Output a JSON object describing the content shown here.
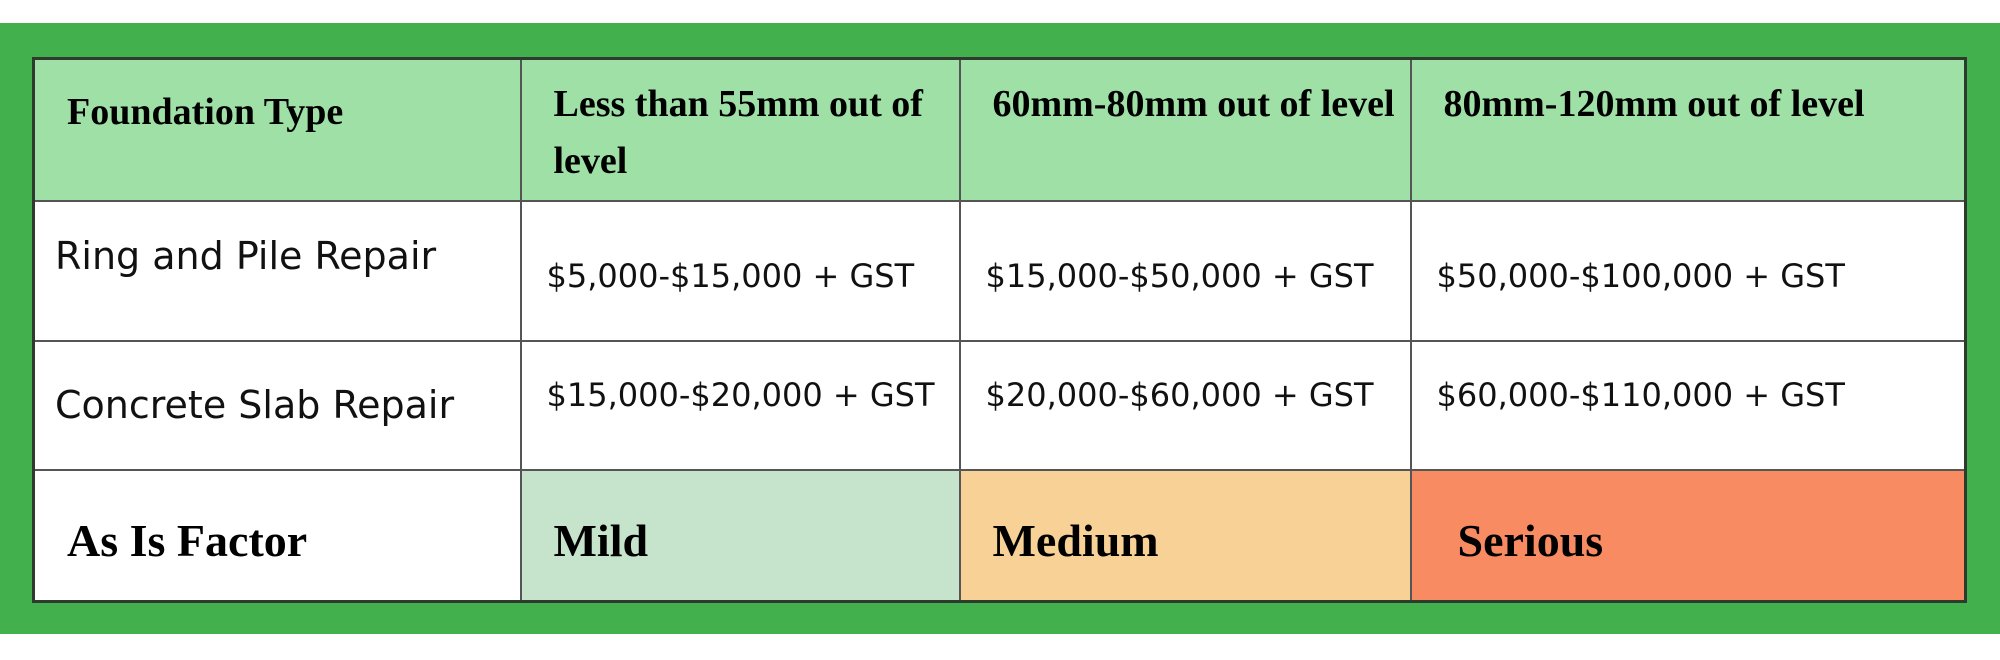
{
  "colors": {
    "frame": "#43b04e",
    "header_bg": "#9fe0a6",
    "mild": "#c6e3cb",
    "medium": "#f7d196",
    "serious": "#f98b63"
  },
  "table": {
    "headers": [
      "Foundation Type",
      "Less than 55mm out of level",
      "60mm-80mm out of level",
      "80mm-120mm out of level"
    ],
    "rows": [
      {
        "label": "Ring and Pile Repair",
        "values": [
          "$5,000-$15,000 + GST",
          "$15,000-$50,000 + GST",
          "$50,000-$100,000 + GST"
        ]
      },
      {
        "label": "Concrete Slab Repair",
        "values": [
          "$15,000-$20,000 + GST",
          "$20,000-$60,000 + GST",
          "$60,000-$110,000 + GST"
        ]
      }
    ],
    "factor": {
      "label": "As Is Factor",
      "values": [
        "Mild",
        "Medium",
        "Serious"
      ]
    }
  }
}
